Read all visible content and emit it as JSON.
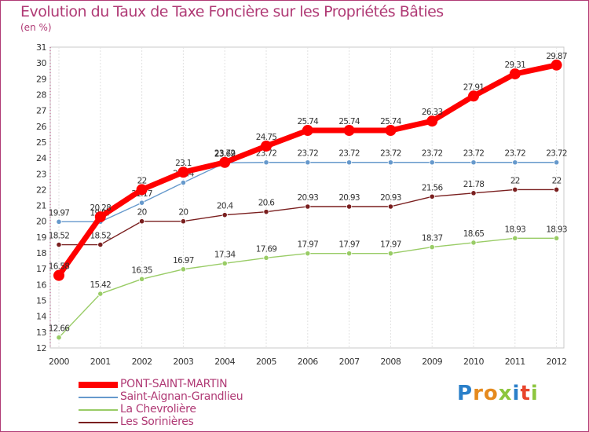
{
  "title": "Evolution du Taux de Taxe Foncière sur les Propriétés Bâties",
  "unit": "(en %)",
  "logo": "Proxiti",
  "chart_data": {
    "type": "line",
    "title": "Evolution du Taux de Taxe Foncière sur les Propriétés Bâties",
    "ylabel": "(en %)",
    "xlabel": "",
    "ylim": [
      12,
      31
    ],
    "x": [
      "2000",
      "2001",
      "2002",
      "2003",
      "2004",
      "2005",
      "2006",
      "2007",
      "2008",
      "2009",
      "2010",
      "2011",
      "2012"
    ],
    "yticks": [
      "12",
      "13",
      "14",
      "15",
      "16",
      "17",
      "18",
      "19",
      "20",
      "21",
      "22",
      "23",
      "24",
      "25",
      "26",
      "27",
      "28",
      "29",
      "30",
      "31"
    ],
    "legend_position": "bottom-left",
    "series": [
      {
        "name": "PONT-SAINT-MARTIN",
        "color": "#ff0000",
        "values": [
          16.58,
          20.28,
          22,
          23.1,
          23.72,
          24.75,
          25.74,
          25.74,
          25.74,
          26.33,
          27.91,
          29.31,
          29.87
        ],
        "labels": [
          "16.58",
          "20.28",
          "22",
          "23.1",
          "23.72",
          "24.75",
          "25.74",
          "25.74",
          "25.74",
          "26.33",
          "27.91",
          "29.31",
          "29.87"
        ]
      },
      {
        "name": "Saint-Aignan-Grandlieu",
        "color": "#6699cc",
        "values": [
          19.97,
          19.97,
          21.17,
          22.44,
          23.69,
          23.72,
          23.72,
          23.72,
          23.72,
          23.72,
          23.72,
          23.72,
          23.72
        ],
        "labels": [
          "19.97",
          "19.97",
          "21.17",
          "22.44",
          "23.69",
          "23.72",
          "23.72",
          "23.72",
          "23.72",
          "23.72",
          "23.72",
          "23.72",
          "23.72"
        ]
      },
      {
        "name": "La Chevrolière",
        "color": "#99cc66",
        "values": [
          12.66,
          15.42,
          16.35,
          16.97,
          17.34,
          17.69,
          17.97,
          17.97,
          17.97,
          18.37,
          18.65,
          18.93,
          18.93
        ],
        "labels": [
          "12.66",
          "15.42",
          "16.35",
          "16.97",
          "17.34",
          "17.69",
          "17.97",
          "17.97",
          "17.97",
          "18.37",
          "18.65",
          "18.93",
          "18.93"
        ]
      },
      {
        "name": "Les Sorinières",
        "color": "#7a1f1f",
        "values": [
          18.52,
          18.52,
          20,
          20,
          20.4,
          20.6,
          20.93,
          20.93,
          20.93,
          21.56,
          21.78,
          22,
          22
        ],
        "labels": [
          "18.52",
          "18.52",
          "20",
          "20",
          "20.4",
          "20.6",
          "20.93",
          "20.93",
          "20.93",
          "21.56",
          "21.78",
          "22",
          "22"
        ]
      }
    ]
  }
}
